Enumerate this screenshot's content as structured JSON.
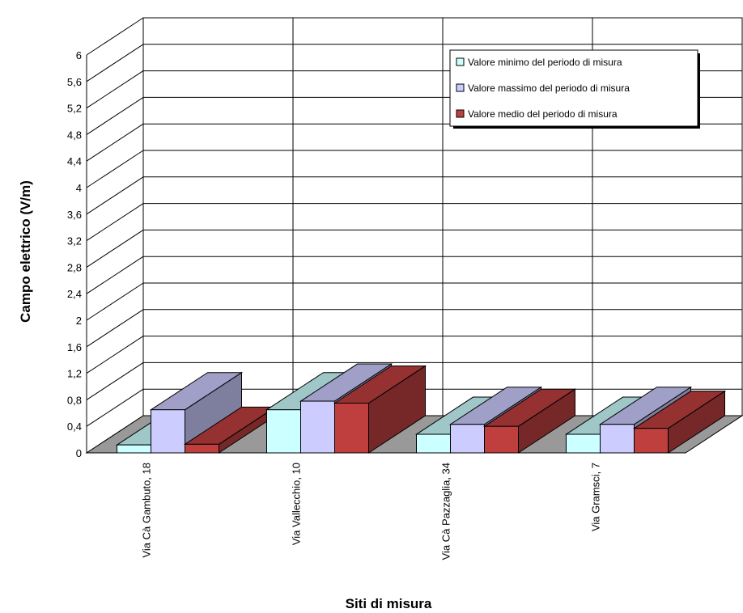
{
  "chart_data": {
    "type": "bar",
    "categories": [
      "Via Cà Gambuto, 18",
      "Via Vallecchio, 10",
      "Via Cà Pazzaglia, 34",
      "Via Gramsci, 7"
    ],
    "series": [
      {
        "name": "Valore minimo  del periodo di misura",
        "values": [
          0.12,
          0.65,
          0.28,
          0.28
        ],
        "color": "#ccffff"
      },
      {
        "name": "Valore massimo  del periodo di misura",
        "values": [
          0.65,
          0.78,
          0.43,
          0.43
        ],
        "color": "#ccccff"
      },
      {
        "name": "Valore medio del periodo di misura",
        "values": [
          0.13,
          0.75,
          0.4,
          0.37
        ],
        "color": "#bf3f3f"
      }
    ],
    "yticks": [
      "0",
      "0,4",
      "0,8",
      "1,2",
      "1,6",
      "2",
      "2,4",
      "2,8",
      "3,2",
      "3,6",
      "4",
      "4,4",
      "4,8",
      "5,2",
      "5,6",
      "6"
    ],
    "ylim": [
      0,
      6
    ],
    "xlabel": "Siti di misura",
    "ylabel": "Campo elettrico (V/m)",
    "legend_position": "top-right",
    "grid": true
  }
}
